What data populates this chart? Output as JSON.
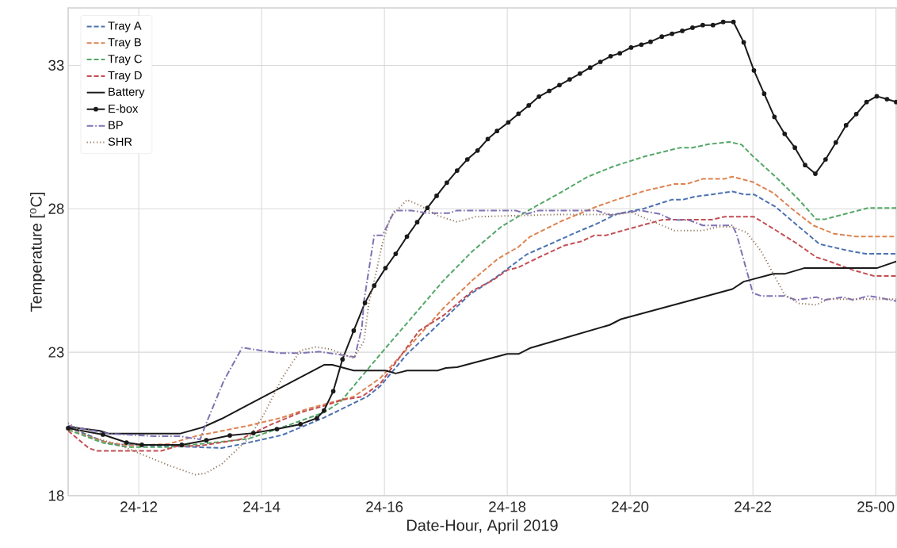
{
  "chart_data": {
    "type": "line",
    "xlabel": "Date-Hour, April 2019",
    "ylabel": "Temperature [$^{o}$C]",
    "xlim": [
      "2019-04-24T10:51",
      "2019-04-25T00:20"
    ],
    "ylim": [
      18,
      35
    ],
    "xticks": [
      {
        "value": "2019-04-24T12:00",
        "label": "24-12"
      },
      {
        "value": "2019-04-24T14:00",
        "label": "24-14"
      },
      {
        "value": "2019-04-24T16:00",
        "label": "24-16"
      },
      {
        "value": "2019-04-24T18:00",
        "label": "24-18"
      },
      {
        "value": "2019-04-24T20:00",
        "label": "24-20"
      },
      {
        "value": "2019-04-24T22:00",
        "label": "24-22"
      },
      {
        "value": "2019-04-25T00:00",
        "label": "25-00"
      }
    ],
    "yticks": [
      18,
      23,
      28,
      33
    ],
    "grid": true,
    "legend": "top left",
    "series": [
      {
        "name": "Tray A",
        "color": "#4c72b0",
        "line_style": "dashed",
        "x": [
          "2019-04-24T10:51",
          "2019-04-24T11:32",
          "2019-04-24T13:21",
          "2019-04-24T13:41",
          "2019-04-24T14:20",
          "2019-04-24T15:01",
          "2019-04-24T15:43",
          "2019-04-24T15:56",
          "2019-04-24T16:22",
          "2019-04-24T16:58",
          "2019-04-24T17:23",
          "2019-04-24T17:49",
          "2019-04-24T18:19",
          "2019-04-24T18:42",
          "2019-04-24T19:07",
          "2019-04-24T19:27",
          "2019-04-24T19:47",
          "2019-04-24T20:13",
          "2019-04-24T20:41",
          "2019-04-24T20:52",
          "2019-04-24T21:03",
          "2019-04-24T21:20",
          "2019-04-24T21:40",
          "2019-04-24T21:51",
          "2019-04-24T22:01",
          "2019-04-24T22:22",
          "2019-04-24T22:45",
          "2019-04-24T23:05",
          "2019-04-24T23:33",
          "2019-04-24T23:50",
          "2019-04-25T00:20"
        ],
        "values": [
          20.39,
          19.8,
          19.66,
          19.8,
          20.11,
          20.72,
          21.45,
          21.82,
          22.93,
          24.15,
          25.0,
          25.61,
          26.41,
          26.77,
          27.17,
          27.47,
          27.82,
          28.0,
          28.32,
          28.32,
          28.42,
          28.5,
          28.6,
          28.5,
          28.5,
          28.07,
          27.37,
          26.77,
          26.54,
          26.43,
          26.43
        ]
      },
      {
        "name": "Tray B",
        "color": "#dd8452",
        "line_style": "dashed",
        "x": [
          "2019-04-24T10:51",
          "2019-04-24T11:25",
          "2019-04-24T11:50",
          "2019-04-24T12:29",
          "2019-04-24T12:55",
          "2019-04-24T13:47",
          "2019-04-24T14:20",
          "2019-04-24T14:46",
          "2019-04-24T15:19",
          "2019-04-24T15:30",
          "2019-04-24T15:56",
          "2019-04-24T16:22",
          "2019-04-24T16:58",
          "2019-04-24T17:26",
          "2019-04-24T17:51",
          "2019-04-24T18:11",
          "2019-04-24T18:22",
          "2019-04-24T18:53",
          "2019-04-24T19:27",
          "2019-04-24T19:47",
          "2019-04-24T20:15",
          "2019-04-24T20:43",
          "2019-04-24T20:55",
          "2019-04-24T21:11",
          "2019-04-24T21:32",
          "2019-04-24T21:40",
          "2019-04-24T22:00",
          "2019-04-24T22:20",
          "2019-04-24T22:39",
          "2019-04-24T22:59",
          "2019-04-24T23:19",
          "2019-04-24T23:41",
          "2019-04-25T00:20"
        ],
        "values": [
          20.3,
          19.89,
          19.75,
          19.8,
          20.07,
          20.44,
          20.72,
          21.04,
          21.35,
          21.45,
          22.1,
          23.11,
          24.55,
          25.51,
          26.26,
          26.67,
          27.02,
          27.57,
          28.07,
          28.32,
          28.63,
          28.86,
          28.86,
          29.04,
          29.04,
          29.12,
          28.93,
          28.55,
          27.97,
          27.42,
          27.13,
          27.03,
          27.03
        ]
      },
      {
        "name": "Tray C",
        "color": "#55a868",
        "line_style": "dashed",
        "x": [
          "2019-04-24T10:51",
          "2019-04-24T11:25",
          "2019-04-24T11:50",
          "2019-04-24T12:29",
          "2019-04-24T13:00",
          "2019-04-24T13:47",
          "2019-04-24T14:25",
          "2019-04-24T15:01",
          "2019-04-24T15:17",
          "2019-04-24T15:56",
          "2019-04-24T16:58",
          "2019-04-24T17:26",
          "2019-04-24T17:54",
          "2019-04-24T18:22",
          "2019-04-24T18:50",
          "2019-04-24T19:19",
          "2019-04-24T19:44",
          "2019-04-24T20:15",
          "2019-04-24T20:49",
          "2019-04-24T21:01",
          "2019-04-24T21:17",
          "2019-04-24T21:37",
          "2019-04-24T21:49",
          "2019-04-24T22:00",
          "2019-04-24T22:22",
          "2019-04-24T22:45",
          "2019-04-24T23:02",
          "2019-04-24T23:10",
          "2019-04-24T23:53",
          "2019-04-25T00:20"
        ],
        "values": [
          20.3,
          19.84,
          19.69,
          19.69,
          19.8,
          19.98,
          20.44,
          20.9,
          21.27,
          22.93,
          25.51,
          26.52,
          27.37,
          27.97,
          28.52,
          29.12,
          29.48,
          29.83,
          30.13,
          30.13,
          30.25,
          30.33,
          30.23,
          29.83,
          29.12,
          28.31,
          27.63,
          27.63,
          28.03,
          28.03
        ]
      },
      {
        "name": "Tray D",
        "color": "#c44e52",
        "line_style": "dashed",
        "x": [
          "2019-04-24T10:51",
          "2019-04-24T11:11",
          "2019-04-24T11:19",
          "2019-04-24T12:22",
          "2019-04-24T12:37",
          "2019-04-24T13:00",
          "2019-04-24T13:39",
          "2019-04-24T14:10",
          "2019-04-24T14:38",
          "2019-04-24T15:01",
          "2019-04-24T15:19",
          "2019-04-24T15:38",
          "2019-04-24T15:56",
          "2019-04-24T16:34",
          "2019-04-24T16:58",
          "2019-04-24T17:26",
          "2019-04-24T17:46",
          "2019-04-24T18:00",
          "2019-04-24T18:11",
          "2019-04-24T18:34",
          "2019-04-24T18:56",
          "2019-04-24T19:13",
          "2019-04-24T19:25",
          "2019-04-24T19:36",
          "2019-04-24T20:01",
          "2019-04-24T20:32",
          "2019-04-24T21:20",
          "2019-04-24T21:32",
          "2019-04-24T22:01",
          "2019-04-24T22:22",
          "2019-04-24T22:42",
          "2019-04-24T23:02",
          "2019-04-24T23:13",
          "2019-04-24T23:38",
          "2019-04-24T23:58",
          "2019-04-25T00:20"
        ],
        "values": [
          20.26,
          19.66,
          19.56,
          19.56,
          19.72,
          19.74,
          19.96,
          20.49,
          20.9,
          21.13,
          21.34,
          21.45,
          21.91,
          23.75,
          24.29,
          25.14,
          25.51,
          25.86,
          25.96,
          26.36,
          26.72,
          26.87,
          27.07,
          27.07,
          27.32,
          27.62,
          27.62,
          27.72,
          27.72,
          27.26,
          26.81,
          26.31,
          26.19,
          25.86,
          25.66,
          25.66
        ]
      },
      {
        "name": "Battery",
        "color": "#1a1a1a",
        "line_style": "solid",
        "x": [
          "2019-04-24T10:51",
          "2019-04-24T11:22",
          "2019-04-24T11:31",
          "2019-04-24T12:40",
          "2019-04-24T13:03",
          "2019-04-24T13:21",
          "2019-04-24T15:01",
          "2019-04-24T15:09",
          "2019-04-24T15:30",
          "2019-04-24T16:01",
          "2019-04-24T16:11",
          "2019-04-24T16:22",
          "2019-04-24T16:52",
          "2019-04-24T17:00",
          "2019-04-24T17:11",
          "2019-04-24T18:00",
          "2019-04-24T18:11",
          "2019-04-24T18:22",
          "2019-04-24T19:40",
          "2019-04-24T19:51",
          "2019-04-24T21:40",
          "2019-04-24T21:51",
          "2019-04-24T22:20",
          "2019-04-24T22:31",
          "2019-04-24T22:50",
          "2019-04-25T00:01",
          "2019-04-25T00:20"
        ],
        "values": [
          20.4,
          20.26,
          20.16,
          20.16,
          20.39,
          20.68,
          22.56,
          22.56,
          22.36,
          22.36,
          22.26,
          22.36,
          22.36,
          22.45,
          22.48,
          22.94,
          22.94,
          23.14,
          23.95,
          24.15,
          25.2,
          25.46,
          25.73,
          25.73,
          25.93,
          25.93,
          26.16
        ]
      },
      {
        "name": "E-box",
        "color": "#1a1a1a",
        "line_style": "solid",
        "marker": "circle",
        "x": [
          "2019-04-24T10:51",
          "2019-04-24T11:25",
          "2019-04-24T11:48",
          "2019-04-24T12:03",
          "2019-04-24T12:42",
          "2019-04-24T13:06",
          "2019-04-24T13:29",
          "2019-04-24T13:52",
          "2019-04-24T14:15",
          "2019-04-24T14:38",
          "2019-04-24T14:54",
          "2019-04-24T15:01",
          "2019-04-24T15:10",
          "2019-04-24T15:19",
          "2019-04-24T15:30",
          "2019-04-24T15:41",
          "2019-04-24T15:50",
          "2019-04-24T16:01",
          "2019-04-24T16:11",
          "2019-04-24T16:22",
          "2019-04-24T16:32",
          "2019-04-24T16:42",
          "2019-04-24T16:51",
          "2019-04-24T17:01",
          "2019-04-24T17:11",
          "2019-04-24T17:21",
          "2019-04-24T17:31",
          "2019-04-24T17:41",
          "2019-04-24T17:50",
          "2019-04-24T18:01",
          "2019-04-24T18:11",
          "2019-04-24T18:21",
          "2019-04-24T18:31",
          "2019-04-24T18:41",
          "2019-04-24T18:51",
          "2019-04-24T19:01",
          "2019-04-24T19:11",
          "2019-04-24T19:21",
          "2019-04-24T19:31",
          "2019-04-24T19:41",
          "2019-04-24T19:50",
          "2019-04-24T20:01",
          "2019-04-24T20:11",
          "2019-04-24T20:20",
          "2019-04-24T20:31",
          "2019-04-24T20:41",
          "2019-04-24T20:51",
          "2019-04-24T21:01",
          "2019-04-24T21:11",
          "2019-04-24T21:21",
          "2019-04-24T21:31",
          "2019-04-24T21:41",
          "2019-04-24T21:51",
          "2019-04-24T22:01",
          "2019-04-24T22:11",
          "2019-04-24T22:21",
          "2019-04-24T22:31",
          "2019-04-24T22:41",
          "2019-04-24T22:51",
          "2019-04-24T23:01",
          "2019-04-24T23:11",
          "2019-04-24T23:21",
          "2019-04-24T23:31",
          "2019-04-24T23:41",
          "2019-04-24T23:51",
          "2019-04-25T00:01",
          "2019-04-25T00:11",
          "2019-04-25T00:20"
        ],
        "values": [
          20.35,
          20.13,
          19.85,
          19.77,
          19.77,
          19.93,
          20.1,
          20.18,
          20.32,
          20.49,
          20.7,
          20.97,
          21.64,
          22.75,
          23.75,
          24.72,
          25.32,
          25.93,
          26.43,
          27.03,
          27.53,
          28.03,
          28.45,
          28.91,
          29.33,
          29.72,
          30.03,
          30.43,
          30.71,
          31.01,
          31.31,
          31.6,
          31.91,
          32.11,
          32.31,
          32.51,
          32.71,
          32.92,
          33.12,
          33.32,
          33.42,
          33.62,
          33.72,
          33.82,
          34.0,
          34.1,
          34.2,
          34.31,
          34.4,
          34.4,
          34.51,
          34.51,
          33.8,
          32.82,
          32.01,
          31.2,
          30.61,
          30.13,
          29.52,
          29.22,
          29.72,
          30.31,
          30.91,
          31.3,
          31.72,
          31.92,
          31.82,
          31.72
        ]
      },
      {
        "name": "BP",
        "color": "#8172b3",
        "line_style": "dashdot",
        "x": [
          "2019-04-24T10:51",
          "2019-04-24T11:30",
          "2019-04-24T12:16",
          "2019-04-24T12:40",
          "2019-04-24T13:00",
          "2019-04-24T13:05",
          "2019-04-24T13:23",
          "2019-04-24T13:41",
          "2019-04-24T13:59",
          "2019-04-24T14:17",
          "2019-04-24T14:38",
          "2019-04-24T14:56",
          "2019-04-24T15:14",
          "2019-04-24T15:31",
          "2019-04-24T15:38",
          "2019-04-24T15:40",
          "2019-04-24T15:50",
          "2019-04-24T15:58",
          "2019-04-24T16:10",
          "2019-04-24T16:26",
          "2019-04-24T16:42",
          "2019-04-24T17:03",
          "2019-04-24T17:11",
          "2019-04-24T18:08",
          "2019-04-24T18:19",
          "2019-04-24T18:31",
          "2019-04-24T19:27",
          "2019-04-24T19:41",
          "2019-04-24T20:10",
          "2019-04-24T20:29",
          "2019-04-24T20:41",
          "2019-04-24T20:58",
          "2019-04-24T21:11",
          "2019-04-24T21:40",
          "2019-04-24T21:44",
          "2019-04-24T22:00",
          "2019-04-24T22:08",
          "2019-04-24T22:31",
          "2019-04-24T22:42",
          "2019-04-24T23:02",
          "2019-04-24T23:10",
          "2019-04-24T23:28",
          "2019-04-24T23:38",
          "2019-04-24T23:53",
          "2019-04-25T00:01",
          "2019-04-25T00:20"
        ],
        "values": [
          20.44,
          20.16,
          20.07,
          20.07,
          19.96,
          20.44,
          22.0,
          23.16,
          23.06,
          22.97,
          22.97,
          23.02,
          22.93,
          22.83,
          23.86,
          24.77,
          27.07,
          27.07,
          27.94,
          27.94,
          27.85,
          27.85,
          27.94,
          27.94,
          27.82,
          27.94,
          27.94,
          27.78,
          27.94,
          27.82,
          27.62,
          27.6,
          27.42,
          27.42,
          27.12,
          25.06,
          24.96,
          24.96,
          24.82,
          24.92,
          24.82,
          24.92,
          24.82,
          24.96,
          24.92,
          24.78
        ]
      },
      {
        "name": "SHR",
        "color": "#937860",
        "line_style": "dotted",
        "x": [
          "2019-04-24T10:51",
          "2019-04-24T11:11",
          "2019-04-24T11:38",
          "2019-04-24T12:01",
          "2019-04-24T12:29",
          "2019-04-24T12:55",
          "2019-04-24T13:05",
          "2019-04-24T13:21",
          "2019-04-24T13:47",
          "2019-04-24T14:02",
          "2019-04-24T14:20",
          "2019-04-24T14:38",
          "2019-04-24T14:53",
          "2019-04-24T15:07",
          "2019-04-24T15:19",
          "2019-04-24T15:30",
          "2019-04-24T15:40",
          "2019-04-24T15:45",
          "2019-04-24T15:48",
          "2019-04-24T15:58",
          "2019-04-24T16:06",
          "2019-04-24T16:22",
          "2019-04-24T16:34",
          "2019-04-24T16:52",
          "2019-04-24T17:11",
          "2019-04-24T17:29",
          "2019-04-24T18:50",
          "2019-04-24T19:47",
          "2019-04-24T20:01",
          "2019-04-24T20:43",
          "2019-04-24T21:11",
          "2019-04-24T21:26",
          "2019-04-24T21:40",
          "2019-04-24T21:54",
          "2019-04-24T22:08",
          "2019-04-24T22:31",
          "2019-04-24T22:45",
          "2019-04-24T23:02",
          "2019-04-24T23:13",
          "2019-04-25T00:20"
        ],
        "values": [
          20.53,
          20.07,
          19.8,
          19.47,
          19.06,
          18.73,
          18.78,
          19.1,
          19.98,
          20.81,
          22.1,
          23.06,
          23.18,
          23.11,
          22.93,
          22.79,
          23.39,
          24.77,
          25.14,
          26.79,
          27.71,
          28.31,
          28.13,
          27.76,
          27.54,
          27.72,
          27.8,
          27.8,
          27.88,
          27.24,
          27.24,
          27.37,
          27.37,
          27.17,
          26.52,
          25.0,
          24.7,
          24.65,
          24.85,
          24.85
        ]
      }
    ]
  }
}
